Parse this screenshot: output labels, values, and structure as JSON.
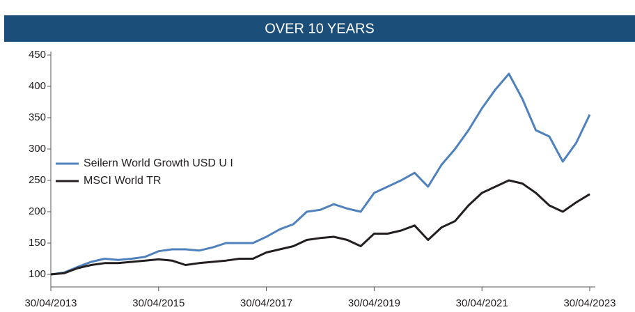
{
  "chart_data": {
    "type": "line",
    "title": "OVER 10 YEARS",
    "categories": [
      "30/04/2013",
      null,
      null,
      null,
      null,
      null,
      null,
      null,
      "30/04/2015",
      null,
      null,
      null,
      null,
      null,
      null,
      null,
      "30/04/2017",
      null,
      null,
      null,
      null,
      null,
      null,
      null,
      "30/04/2019",
      null,
      null,
      null,
      null,
      null,
      null,
      null,
      "30/04/2021",
      null,
      null,
      null,
      null,
      null,
      null,
      null,
      "30/04/2023"
    ],
    "series": [
      {
        "name": "Seilern World Growth USD U I",
        "color": "#4f81bd",
        "values": [
          100,
          103,
          112,
          120,
          125,
          123,
          125,
          128,
          137,
          140,
          140,
          138,
          143,
          150,
          150,
          150,
          160,
          172,
          180,
          200,
          203,
          212,
          205,
          200,
          230,
          240,
          250,
          262,
          240,
          275,
          300,
          330,
          365,
          395,
          420,
          380,
          330,
          320,
          280,
          310,
          355
        ]
      },
      {
        "name": "MSCI World TR",
        "color": "#231f20",
        "values": [
          100,
          102,
          110,
          115,
          118,
          118,
          120,
          122,
          124,
          122,
          115,
          118,
          120,
          122,
          125,
          125,
          135,
          140,
          145,
          155,
          158,
          160,
          155,
          145,
          165,
          165,
          170,
          178,
          155,
          175,
          185,
          210,
          230,
          240,
          250,
          245,
          230,
          210,
          200,
          215,
          228
        ]
      }
    ],
    "ylim": [
      80,
      450
    ],
    "yticks": [
      100,
      150,
      200,
      250,
      300,
      350,
      400,
      450
    ],
    "legend": "left"
  }
}
